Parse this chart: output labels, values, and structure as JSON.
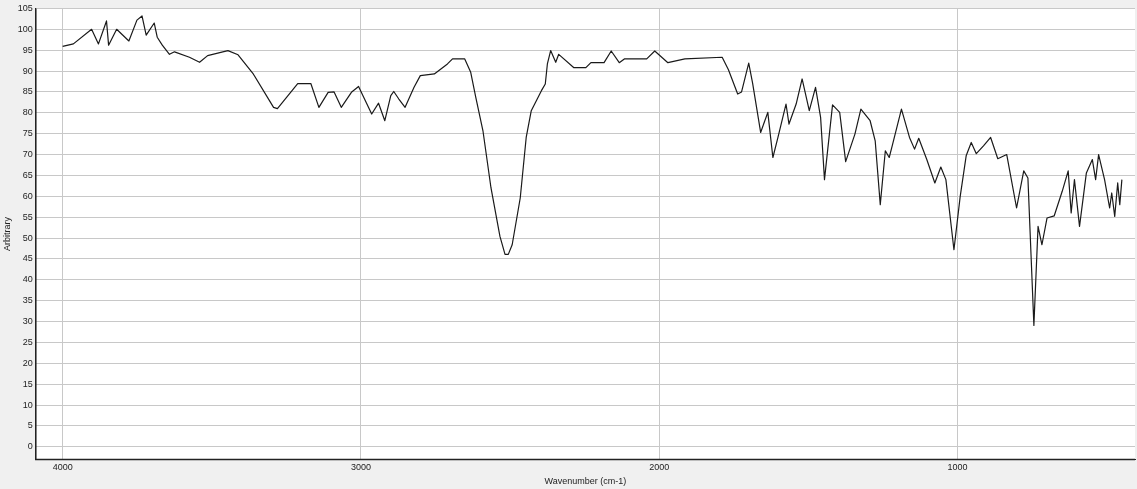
{
  "chart_data": {
    "type": "line",
    "xlabel": "Wavenumber (cm-1)",
    "ylabel": "Arbitrary",
    "xlim": [
      4090,
      405
    ],
    "xticks": [
      4000,
      3000,
      2000,
      1000
    ],
    "ylim": [
      -3,
      105
    ],
    "yticks": [
      0,
      5,
      10,
      15,
      20,
      25,
      30,
      35,
      40,
      45,
      50,
      55,
      60,
      65,
      70,
      75,
      80,
      85,
      90,
      95,
      100,
      105
    ],
    "grid": true,
    "legend": false,
    "marker": "none",
    "line_style": "solid",
    "series": [
      {
        "color": "#1a1a1a",
        "x": [
          4000,
          3964,
          3903,
          3880,
          3853,
          3846,
          3819,
          3778,
          3751,
          3734,
          3720,
          3693,
          3683,
          3666,
          3642,
          3625,
          3575,
          3541,
          3514,
          3446,
          3412,
          3361,
          3293,
          3280,
          3212,
          3168,
          3141,
          3110,
          3090,
          3066,
          3032,
          3008,
          2964,
          2941,
          2920,
          2900,
          2890,
          2873,
          2852,
          2822,
          2801,
          2754,
          2710,
          2693,
          2652,
          2632,
          2615,
          2591,
          2564,
          2534,
          2517,
          2506,
          2493,
          2466,
          2446,
          2429,
          2395,
          2382,
          2375,
          2364,
          2347,
          2337,
          2286,
          2246,
          2229,
          2185,
          2161,
          2134,
          2117,
          2042,
          2015,
          1971,
          1914,
          1789,
          1768,
          1737,
          1724,
          1700,
          1687,
          1660,
          1636,
          1619,
          1602,
          1575,
          1565,
          1541,
          1521,
          1497,
          1476,
          1459,
          1446,
          1419,
          1395,
          1375,
          1344,
          1324,
          1293,
          1276,
          1259,
          1242,
          1229,
          1219,
          1188,
          1161,
          1144,
          1130,
          1103,
          1076,
          1056,
          1039,
          1012,
          991,
          971,
          954,
          937,
          913,
          889,
          865,
          835,
          802,
          778,
          764,
          744,
          730,
          717,
          700,
          676,
          649,
          629,
          619,
          608,
          591,
          568,
          548,
          537,
          527,
          507,
          490,
          483,
          473,
          463,
          456,
          449
        ],
        "values": [
          95.9,
          96.5,
          100,
          96.5,
          102,
          96.2,
          100,
          97.2,
          102.2,
          103.2,
          98.6,
          101.5,
          98.1,
          96.2,
          94,
          94.6,
          93.3,
          92.1,
          93.7,
          94.9,
          93.9,
          89.3,
          81.3,
          81,
          87,
          87,
          81.3,
          84.9,
          85,
          81.3,
          84.9,
          86.3,
          79.7,
          82.3,
          78.1,
          84.1,
          85.1,
          83.3,
          81.3,
          86.1,
          88.9,
          89.3,
          91.7,
          92.9,
          92.9,
          89.7,
          83.7,
          75.7,
          62,
          50.4,
          46.1,
          46.1,
          48.4,
          59.6,
          74.1,
          80.5,
          85.3,
          86.9,
          91.7,
          94.9,
          92.1,
          94,
          90.8,
          90.8,
          92,
          92,
          94.8,
          92,
          92.9,
          92.9,
          94.8,
          92,
          92.9,
          93.3,
          90.3,
          84.5,
          85,
          91.9,
          87.1,
          75.3,
          80.1,
          69.3,
          74.1,
          82.1,
          77.3,
          82.1,
          88.1,
          80.5,
          86.1,
          78.9,
          64,
          81.9,
          80.1,
          68.3,
          74.9,
          80.9,
          78.1,
          73.3,
          58,
          70.9,
          69.3,
          72.1,
          80.9,
          74.1,
          71.3,
          73.9,
          68.8,
          63.2,
          67,
          64,
          47.2,
          60,
          69.7,
          72.9,
          70.2,
          72.1,
          74.1,
          69,
          70,
          57.2,
          66.1,
          64.4,
          29.1,
          52.8,
          48.4,
          54.8,
          55.3,
          61.2,
          66.1,
          56,
          64,
          52.8,
          65.6,
          68.8,
          64,
          70,
          64,
          57.2,
          60.8,
          55.2,
          63.2,
          58,
          64
        ]
      }
    ]
  }
}
